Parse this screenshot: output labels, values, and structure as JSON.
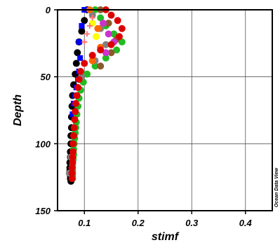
{
  "watermark": "Ocean Data View",
  "chart_data": {
    "type": "scatter",
    "title": "",
    "xlabel": "stimf",
    "ylabel": "Depth",
    "xlim": [
      0.05,
      0.45
    ],
    "ylim": [
      0,
      150
    ],
    "y_inverted": true,
    "grid": true,
    "x_ticks": [
      0.1,
      0.2,
      0.3,
      0.4
    ],
    "x_tick_labels": [
      "0.1",
      "0.2",
      "0.3",
      "0.4"
    ],
    "y_ticks": [
      0,
      50,
      100,
      150
    ],
    "y_tick_labels": [
      "0",
      "50",
      "100",
      "150"
    ],
    "series": [
      {
        "color": "#000000",
        "marker": "circle",
        "x": [
          0.105,
          0.1,
          0.095,
          0.09,
          0.087,
          0.085,
          0.083,
          0.08,
          0.078,
          0.077,
          0.076,
          0.076,
          0.075,
          0.075,
          0.074,
          0.074,
          0.073,
          0.073,
          0.073,
          0.073,
          0.074,
          0.074,
          0.075
        ],
        "y": [
          0,
          8,
          16,
          24,
          32,
          40,
          48,
          56,
          64,
          72,
          80,
          88,
          94,
          100,
          106,
          110,
          114,
          118,
          120,
          122,
          124,
          126,
          128
        ]
      },
      {
        "color": "#0000ff",
        "marker": "square",
        "x": [
          0.1,
          0.095,
          0.09,
          0.092,
          0.09,
          0.088,
          0.085,
          0.083,
          0.08,
          0.078
        ],
        "y": [
          0,
          12,
          24,
          36,
          46,
          52,
          58,
          64,
          70,
          78
        ]
      },
      {
        "color": "#22bb22",
        "marker": "circle",
        "x": [
          0.12,
          0.13,
          0.14,
          0.155,
          0.17,
          0.16,
          0.14,
          0.12,
          0.105,
          0.098,
          0.093,
          0.09,
          0.088,
          0.086,
          0.085,
          0.084,
          0.083,
          0.082,
          0.081,
          0.08,
          0.08,
          0.079,
          0.079,
          0.078,
          0.078,
          0.078,
          0.078,
          0.078,
          0.078,
          0.078
        ],
        "y": [
          0,
          6,
          12,
          18,
          24,
          30,
          36,
          42,
          48,
          54,
          60,
          66,
          72,
          78,
          84,
          88,
          92,
          96,
          100,
          104,
          108,
          110,
          112,
          114,
          116,
          118,
          120,
          122,
          124,
          126
        ]
      },
      {
        "color": "#8b5a2b",
        "marker": "circle",
        "x": [
          0.13,
          0.145,
          0.16,
          0.15,
          0.13
        ],
        "y": [
          0,
          10,
          22,
          32,
          42
        ]
      },
      {
        "color": "#808080",
        "marker": "circle",
        "x": [
          0.115,
          0.13,
          0.14,
          0.12,
          0.095,
          0.075,
          0.072
        ],
        "y": [
          4,
          14,
          26,
          38,
          50,
          110,
          122
        ]
      },
      {
        "color": "#ff6600",
        "marker": "circle",
        "x": [
          0.11,
          0.125,
          0.13,
          0.115
        ],
        "y": [
          0,
          14,
          28,
          38
        ]
      },
      {
        "color": "#cc33cc",
        "marker": "circle",
        "x": [
          0.135,
          0.145,
          0.155,
          0.14
        ],
        "y": [
          10,
          18,
          24,
          32
        ]
      },
      {
        "color": "#ffff00",
        "marker": "circle",
        "x": [
          0.115,
          0.122
        ],
        "y": [
          10,
          20
        ]
      },
      {
        "color": "#dd0000",
        "marker": "circle",
        "x": [
          0.14,
          0.15,
          0.162,
          0.17,
          0.165,
          0.15,
          0.13,
          0.115,
          0.1,
          0.093,
          0.09,
          0.088,
          0.086,
          0.084,
          0.083,
          0.082,
          0.081,
          0.08,
          0.079,
          0.079,
          0.078,
          0.078,
          0.077,
          0.077,
          0.077
        ],
        "y": [
          0,
          4,
          8,
          14,
          20,
          26,
          30,
          34,
          40,
          46,
          52,
          58,
          64,
          70,
          76,
          82,
          88,
          94,
          100,
          106,
          110,
          114,
          118,
          122,
          126
        ]
      },
      {
        "color": "#ff7777",
        "marker": "plus",
        "x": [
          0.115,
          0.11,
          0.105,
          0.1
        ],
        "y": [
          6,
          12,
          18,
          24
        ]
      }
    ]
  }
}
